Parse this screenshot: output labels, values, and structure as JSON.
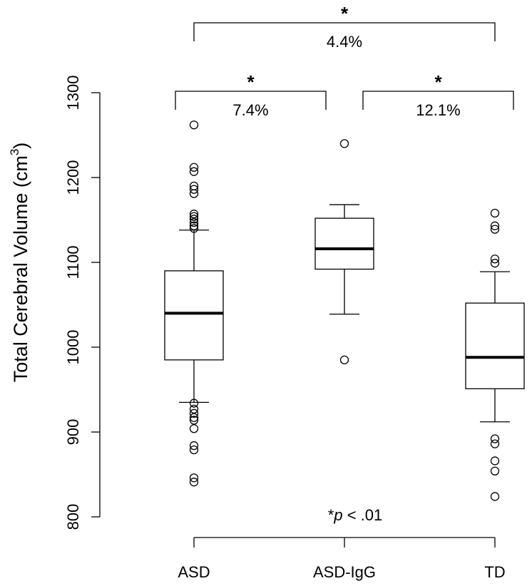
{
  "chart_data": {
    "type": "boxplot",
    "ylabel": "Total Cerebral Volume (cm",
    "ylabel_sup": "3",
    "ylabel_close": ")",
    "ylim": [
      800,
      1300
    ],
    "yticks": [
      800,
      900,
      1000,
      1100,
      1200,
      1300
    ],
    "categories": [
      "ASD",
      "ASD-IgG",
      "TD"
    ],
    "boxes": [
      {
        "category": "ASD",
        "lower_whisker": 935,
        "q1": 985,
        "median": 1040,
        "q3": 1090,
        "upper_whisker": 1138,
        "outliers": [
          1262,
          1212,
          1207,
          1190,
          1186,
          1181,
          1157,
          1154,
          1151,
          1147,
          1143,
          1140,
          934,
          927,
          922,
          917,
          914,
          904,
          884,
          879,
          846,
          841
        ]
      },
      {
        "category": "ASD-IgG",
        "lower_whisker": 1039,
        "q1": 1092,
        "median": 1116,
        "q3": 1152,
        "upper_whisker": 1168,
        "outliers": [
          1240,
          985
        ]
      },
      {
        "category": "TD",
        "lower_whisker": 912,
        "q1": 951,
        "median": 988,
        "q3": 1052,
        "upper_whisker": 1089,
        "outliers": [
          1158,
          1143,
          1139,
          1104,
          1099,
          892,
          886,
          866,
          854,
          824
        ]
      }
    ],
    "comparisons": [
      {
        "from": "ASD",
        "to": "ASD-IgG",
        "label": "7.4%",
        "star": "*"
      },
      {
        "from": "ASD-IgG",
        "to": "TD",
        "label": "12.1%",
        "star": "*"
      },
      {
        "from": "ASD",
        "to": "TD",
        "label": "4.4%",
        "star": "*"
      }
    ],
    "annotation": {
      "star": "*",
      "p": "p",
      "rest": " < .01"
    }
  }
}
